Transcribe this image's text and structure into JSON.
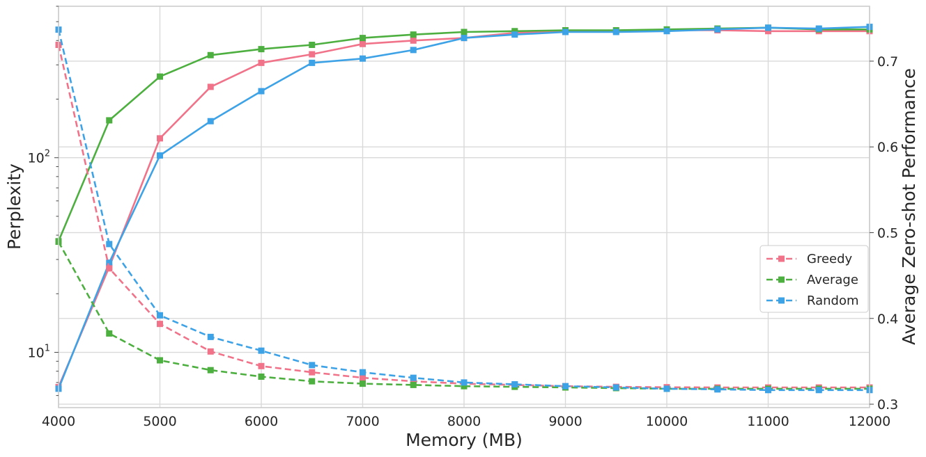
{
  "chart_data": {
    "type": "line",
    "xlabel": "Memory (MB)",
    "ylabel_left": "Perplexity",
    "ylabel_right": "Average Zero-shot Performance",
    "xlim": [
      4000,
      12000
    ],
    "x_ticks": [
      4000,
      5000,
      6000,
      7000,
      8000,
      9000,
      10000,
      11000,
      12000
    ],
    "y_left_scale": "log",
    "y_left_lim": [
      5.2,
      600
    ],
    "y_left_ticks": [
      {
        "value": 10,
        "base": "10",
        "exp": "1"
      },
      {
        "value": 100,
        "base": "10",
        "exp": "2"
      }
    ],
    "y_right_lim": [
      0.296,
      0.764
    ],
    "y_right_ticks": [
      "0.3",
      "0.4",
      "0.5",
      "0.6",
      "0.7"
    ],
    "grid": true,
    "legend_position": "center-right",
    "x": [
      4000,
      4500,
      5000,
      5500,
      6000,
      6500,
      7000,
      7500,
      8000,
      8500,
      9000,
      9500,
      10000,
      10500,
      11000,
      11500,
      12000
    ],
    "series": [
      {
        "name": "Greedy",
        "color": "#f0738a",
        "perplexity": [
          380,
          27,
          14,
          10.1,
          8.5,
          7.9,
          7.4,
          7.1,
          6.9,
          6.8,
          6.7,
          6.65,
          6.62,
          6.6,
          6.6,
          6.6,
          6.6
        ],
        "zero_shot": [
          0.32,
          0.46,
          0.61,
          0.67,
          0.698,
          0.708,
          0.72,
          0.724,
          0.727,
          0.733,
          0.735,
          0.735,
          0.736,
          0.736,
          0.735,
          0.735,
          0.735
        ]
      },
      {
        "name": "Average",
        "color": "#4daf3f",
        "perplexity": [
          37,
          12.5,
          9.1,
          8.1,
          7.5,
          7.1,
          6.9,
          6.8,
          6.7,
          6.65,
          6.6,
          6.55,
          6.5,
          6.5,
          6.5,
          6.5,
          6.5
        ],
        "zero_shot": [
          0.49,
          0.631,
          0.682,
          0.707,
          0.714,
          0.719,
          0.727,
          0.731,
          0.734,
          0.735,
          0.736,
          0.736,
          0.737,
          0.738,
          0.739,
          0.737,
          0.737
        ]
      },
      {
        "name": "Random",
        "color": "#3ea2e6",
        "perplexity": [
          455,
          36,
          15.5,
          12,
          10.2,
          8.6,
          7.9,
          7.4,
          7,
          6.85,
          6.7,
          6.6,
          6.5,
          6.45,
          6.4,
          6.4,
          6.4
        ],
        "zero_shot": [
          0.318,
          0.465,
          0.59,
          0.63,
          0.665,
          0.698,
          0.703,
          0.713,
          0.727,
          0.731,
          0.734,
          0.734,
          0.735,
          0.737,
          0.739,
          0.738,
          0.74
        ]
      }
    ]
  }
}
